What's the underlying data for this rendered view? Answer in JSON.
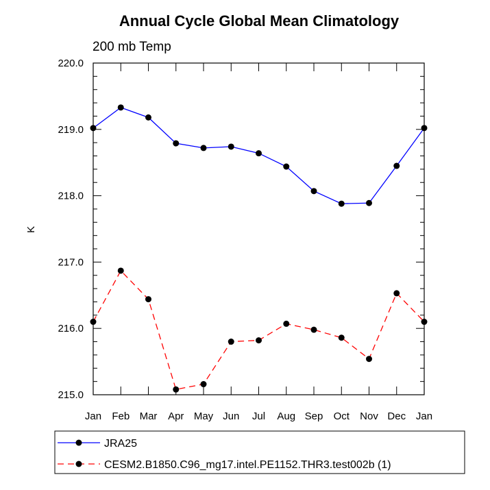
{
  "chart_data": {
    "type": "line",
    "title": "Annual Cycle Global Mean Climatology",
    "subtitle": "200 mb Temp",
    "xlabel": "",
    "ylabel": "K",
    "categories": [
      "Jan",
      "Feb",
      "Mar",
      "Apr",
      "May",
      "Jun",
      "Jul",
      "Aug",
      "Sep",
      "Oct",
      "Nov",
      "Dec",
      "Jan"
    ],
    "ylim": [
      215.0,
      220.0
    ],
    "y_ticks": [
      215.0,
      216.0,
      217.0,
      218.0,
      219.0,
      220.0
    ],
    "y_tick_labels": [
      "215.0",
      "216.0",
      "217.0",
      "218.0",
      "219.0",
      "220.0"
    ],
    "grid": false,
    "legend_position": "bottom",
    "series": [
      {
        "name": "JRA25",
        "color": "#0000ff",
        "dash": "solid",
        "marker": "filled-circle",
        "values": [
          219.02,
          219.33,
          219.18,
          218.79,
          218.72,
          218.74,
          218.64,
          218.44,
          218.07,
          217.88,
          217.89,
          218.45,
          219.02
        ]
      },
      {
        "name": "CESM2.B1850.C96_mg17.intel.PE1152.THR3.test002b (1)",
        "color": "#ff0000",
        "dash": "dashed",
        "marker": "filled-circle",
        "values": [
          216.1,
          216.87,
          216.44,
          215.08,
          215.16,
          215.8,
          215.82,
          216.07,
          215.98,
          215.86,
          215.54,
          216.53,
          216.1
        ]
      }
    ]
  }
}
